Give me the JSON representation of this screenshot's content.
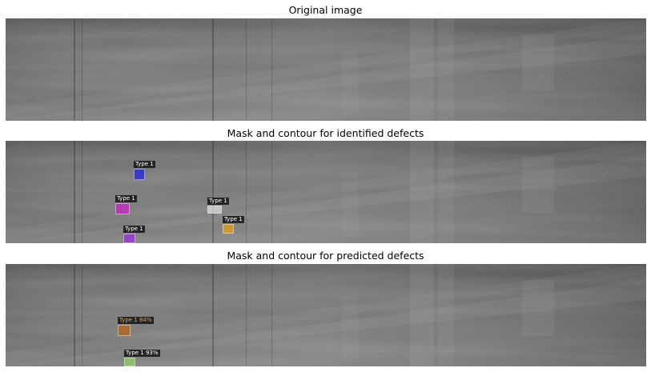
{
  "panels": [
    {
      "title": "Original image",
      "defects": []
    },
    {
      "title": "Mask and contour for identified defects",
      "defects": [
        {
          "label": "Type 1",
          "color": "#2323d8",
          "tag_color": "#ffffff"
        },
        {
          "label": "Type 1",
          "color": "#c824c8",
          "tag_color": "#ffffff"
        },
        {
          "label": "Type 1",
          "color": "#dcdcdc",
          "tag_color": "#ffffff"
        },
        {
          "label": "Type 1",
          "color": "#e0a020",
          "tag_color": "#ffffff"
        },
        {
          "label": "Type 1",
          "color": "#9b30d8",
          "tag_color": "#ffffff"
        }
      ]
    },
    {
      "title": "Mask and contour for predicted defects",
      "defects": [
        {
          "label": "Type 1 84%",
          "color": "#b4641e",
          "tag_color": "#f0a040"
        },
        {
          "label": "Type 1 93%",
          "color": "#8ed064",
          "tag_color": "#ffffff"
        }
      ]
    }
  ]
}
